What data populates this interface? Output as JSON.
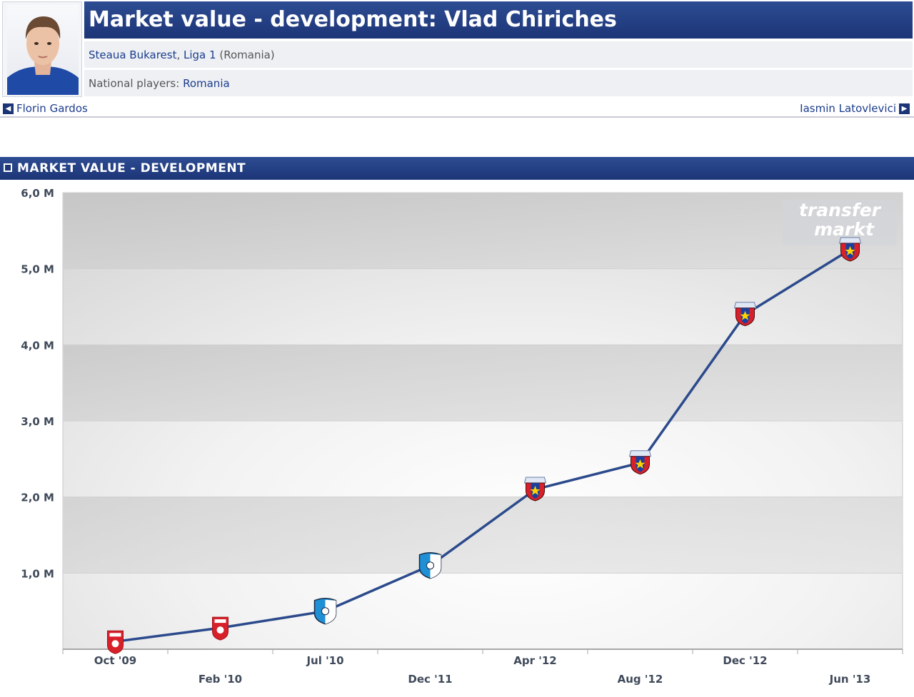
{
  "header": {
    "title": "Market value - development: Vlad Chiriches",
    "club": "Steaua Bukarest",
    "league_sep": ", ",
    "league": "Liga 1",
    "country": "(Romania)",
    "national_label": "National players: ",
    "national_team": "Romania"
  },
  "nav": {
    "prev_player": "Florin Gardos",
    "next_player": "Iasmin Latovlevici"
  },
  "section": {
    "title": "MARKET VALUE - DEVELOPMENT"
  },
  "watermark": {
    "line1": "transfer",
    "line2": "markt"
  },
  "colors": {
    "header_blue": "#1c3577",
    "line": "#2b4a8c",
    "steaua_red": "#d8202a",
    "pandurii_blue": "#1f8fd6"
  },
  "chart_data": {
    "type": "line",
    "y_tick_labels": [
      "6,0 M",
      "5,0 M",
      "4,0 M",
      "3,0 M",
      "2,0 M",
      "1,0 M"
    ],
    "ylim": [
      0,
      6
    ],
    "grid": true,
    "points": [
      {
        "label": "Oct '09",
        "value": 0.1,
        "club": "sportul-studentesc"
      },
      {
        "label": "Feb '10",
        "value": 0.28,
        "club": "sportul-studentesc"
      },
      {
        "label": "Jul '10",
        "value": 0.5,
        "club": "pandurii"
      },
      {
        "label": "Dec '11",
        "value": 1.1,
        "club": "pandurii"
      },
      {
        "label": "Apr '12",
        "value": 2.1,
        "club": "steaua"
      },
      {
        "label": "Aug '12",
        "value": 2.45,
        "club": "steaua"
      },
      {
        "label": "Dec '12",
        "value": 4.4,
        "club": "steaua"
      },
      {
        "label": "Jun '13",
        "value": 5.25,
        "club": "steaua"
      }
    ]
  }
}
